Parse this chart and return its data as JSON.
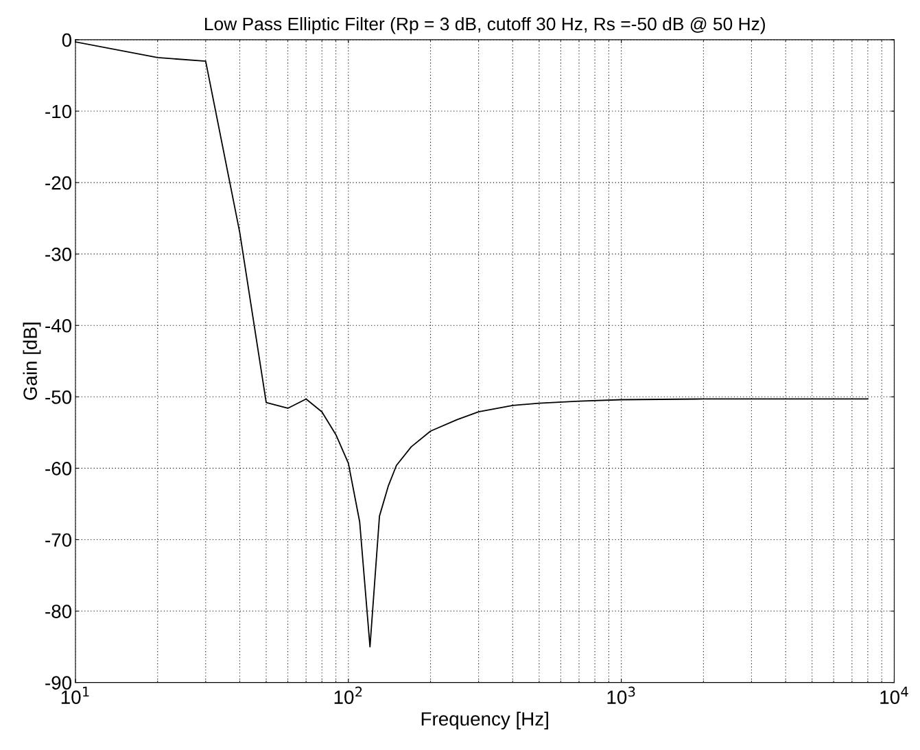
{
  "chart_data": {
    "type": "line",
    "title": "Low Pass Elliptic Filter (Rp = 3 dB, cutoff 30 Hz, Rs =-50 dB @ 50 Hz)",
    "xlabel": "Frequency [Hz]",
    "ylabel": "Gain [dB]",
    "log": "x",
    "grid": true,
    "marker": "none",
    "line_style": "solid",
    "xlim": [
      10,
      10000
    ],
    "ylim": [
      -90,
      0
    ],
    "xticks": [
      {
        "value": 10,
        "label": "10$^{1}$"
      },
      {
        "value": 100,
        "label": "10$^{2}$"
      },
      {
        "value": 1000,
        "label": "10$^{3}$"
      },
      {
        "value": 10000,
        "label": "10$^{4}$"
      }
    ],
    "yticks": [
      -90,
      -80,
      -70,
      -60,
      -50,
      -40,
      -30,
      -20,
      -10,
      0
    ],
    "series": [
      {
        "color": "#000000",
        "x": [
          10,
          20,
          30,
          40,
          50,
          60,
          70,
          80,
          90,
          100,
          110,
          120,
          130,
          140,
          150,
          170,
          200,
          250,
          300,
          400,
          500,
          700,
          1000,
          2000,
          4000,
          8000
        ],
        "values": [
          -0.3,
          -2.5,
          -3.0,
          -27,
          -50.8,
          -51.6,
          -50.3,
          -52.1,
          -55.3,
          -59.3,
          -67.5,
          -85,
          -66.7,
          -62.5,
          -59.6,
          -57,
          -54.8,
          -53.2,
          -52.1,
          -51.2,
          -50.9,
          -50.6,
          -50.4,
          -50.3,
          -50.3,
          -50.3
        ]
      }
    ]
  }
}
